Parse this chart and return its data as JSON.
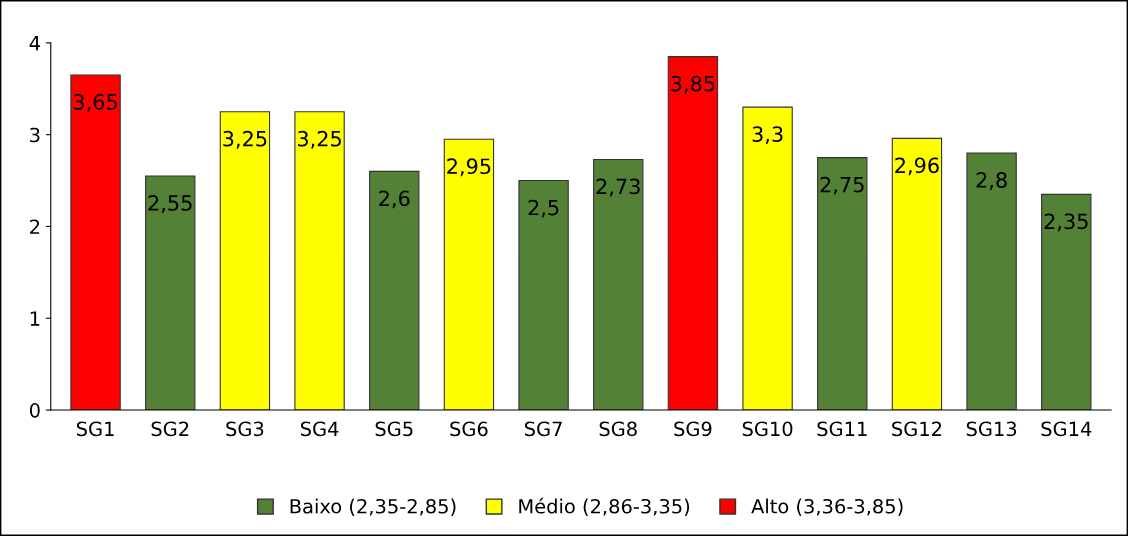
{
  "chart_data": {
    "type": "bar",
    "categories": [
      "SG1",
      "SG2",
      "SG3",
      "SG4",
      "SG5",
      "SG6",
      "SG7",
      "SG8",
      "SG9",
      "SG10",
      "SG11",
      "SG12",
      "SG13",
      "SG14"
    ],
    "series": [
      {
        "name": "Baixo (2,35-2,85)",
        "color": "#538135",
        "values": [
          null,
          2.55,
          null,
          null,
          2.6,
          null,
          2.5,
          2.73,
          null,
          null,
          2.75,
          null,
          2.8,
          2.35
        ],
        "value_labels": [
          null,
          "2,55",
          null,
          null,
          "2,6",
          null,
          "2,5",
          "2,73",
          null,
          null,
          "2,75",
          null,
          "2,8",
          "2,35"
        ]
      },
      {
        "name": "Médio (2,86-3,35)",
        "color": "#ffff00",
        "values": [
          null,
          null,
          3.25,
          3.25,
          null,
          2.95,
          null,
          null,
          null,
          3.3,
          null,
          2.96,
          null,
          null
        ],
        "value_labels": [
          null,
          null,
          "3,25",
          "3,25",
          null,
          "2,95",
          null,
          null,
          null,
          "3,3",
          null,
          "2,96",
          null,
          null
        ]
      },
      {
        "name": "Alto (3,36-3,85)",
        "color": "#ff0000",
        "values": [
          3.65,
          null,
          null,
          null,
          null,
          null,
          null,
          null,
          3.85,
          null,
          null,
          null,
          null,
          null
        ],
        "value_labels": [
          "3,65",
          null,
          null,
          null,
          null,
          null,
          null,
          null,
          "3,85",
          null,
          null,
          null,
          null,
          null
        ]
      }
    ],
    "ylim": [
      0,
      4
    ],
    "yticks": [
      0,
      1,
      2,
      3,
      4
    ],
    "grid": false,
    "legend": "bottom"
  }
}
